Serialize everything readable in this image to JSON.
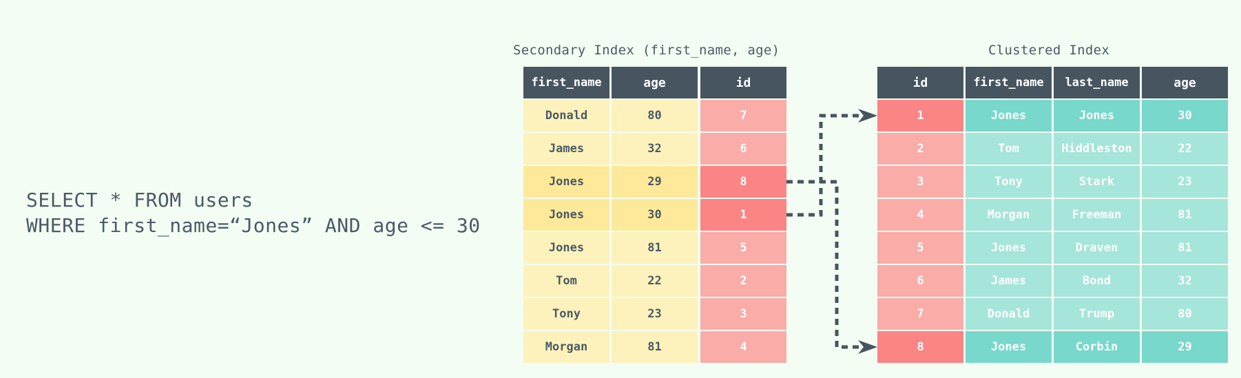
{
  "query": {
    "line1": "SELECT * FROM users",
    "line2": "WHERE first_name=“Jones” AND age <= 30"
  },
  "secondary_index": {
    "title": "Secondary Index (first_name, age)",
    "columns": [
      "first_name",
      "age",
      "id"
    ],
    "rows": [
      {
        "cells": [
          "Donald",
          "80",
          "7"
        ],
        "match": false
      },
      {
        "cells": [
          "James",
          "32",
          "6"
        ],
        "match": false
      },
      {
        "cells": [
          "Jones",
          "29",
          "8"
        ],
        "match": true
      },
      {
        "cells": [
          "Jones",
          "30",
          "1"
        ],
        "match": true
      },
      {
        "cells": [
          "Jones",
          "81",
          "5"
        ],
        "match": false
      },
      {
        "cells": [
          "Tom",
          "22",
          "2"
        ],
        "match": false
      },
      {
        "cells": [
          "Tony",
          "23",
          "3"
        ],
        "match": false
      },
      {
        "cells": [
          "Morgan",
          "81",
          "4"
        ],
        "match": false
      }
    ]
  },
  "clustered_index": {
    "title": "Clustered Index",
    "columns": [
      "id",
      "first_name",
      "last_name",
      "age"
    ],
    "rows": [
      {
        "cells": [
          "1",
          "Jones",
          "Jones",
          "30"
        ],
        "match": true
      },
      {
        "cells": [
          "2",
          "Tom",
          "Hiddleston",
          "22"
        ],
        "match": false
      },
      {
        "cells": [
          "3",
          "Tony",
          "Stark",
          "23"
        ],
        "match": false
      },
      {
        "cells": [
          "4",
          "Morgan",
          "Freeman",
          "81"
        ],
        "match": false
      },
      {
        "cells": [
          "5",
          "Jones",
          "Draven",
          "81"
        ],
        "match": false
      },
      {
        "cells": [
          "6",
          "James",
          "Bond",
          "32"
        ],
        "match": false
      },
      {
        "cells": [
          "7",
          "Donald",
          "Trump",
          "80"
        ],
        "match": false
      },
      {
        "cells": [
          "8",
          "Jones",
          "Corbin",
          "29"
        ],
        "match": true
      }
    ]
  },
  "lookups": [
    {
      "from_row": 3,
      "to_row": 0
    },
    {
      "from_row": 2,
      "to_row": 7
    }
  ],
  "colors": {
    "background": "#f3fdf3",
    "header": "#46555f",
    "yellow_light": "#fdf2bb",
    "yellow_match": "#fde999",
    "red_light": "#faaca9",
    "red_match": "#fa8584",
    "teal_light": "#a5e5da",
    "teal_match": "#77d8cb",
    "text_dark": "#4a5a66",
    "text_light": "#ffffff",
    "arrow": "#46555f"
  }
}
